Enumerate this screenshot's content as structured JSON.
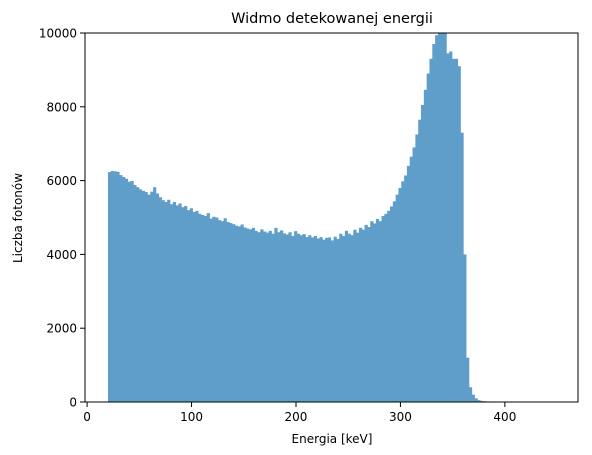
{
  "chart_data": {
    "type": "bar",
    "histogram": true,
    "title": "Widmo detekowanej energii",
    "xlabel": "Energia [keV]",
    "ylabel": "Liczba fotonów",
    "xlim": [
      -2,
      470
    ],
    "ylim": [
      0,
      10000
    ],
    "xticks": [
      0,
      100,
      200,
      300,
      400
    ],
    "yticks": [
      0,
      2000,
      4000,
      6000,
      8000,
      10000
    ],
    "grid": false,
    "bar_color": "#5f9ec9",
    "bin_width": 2.7,
    "x_start": 20,
    "values": [
      6230,
      6260,
      6250,
      6240,
      6150,
      6100,
      6050,
      5970,
      5990,
      5880,
      5820,
      5760,
      5720,
      5690,
      5620,
      5700,
      5820,
      5650,
      5550,
      5470,
      5420,
      5480,
      5360,
      5420,
      5330,
      5380,
      5280,
      5310,
      5200,
      5250,
      5150,
      5180,
      5100,
      5070,
      5040,
      5120,
      4970,
      5020,
      5000,
      4930,
      4900,
      4980,
      4880,
      4850,
      4820,
      4780,
      4760,
      4810,
      4730,
      4700,
      4680,
      4720,
      4640,
      4600,
      4680,
      4620,
      4590,
      4640,
      4560,
      4720,
      4600,
      4650,
      4570,
      4540,
      4600,
      4500,
      4630,
      4560,
      4520,
      4550,
      4470,
      4520,
      4460,
      4500,
      4430,
      4470,
      4400,
      4450,
      4460,
      4380,
      4480,
      4420,
      4560,
      4500,
      4640,
      4560,
      4520,
      4670,
      4590,
      4720,
      4670,
      4800,
      4740,
      4900,
      4840,
      4960,
      4900,
      5040,
      5100,
      5180,
      5300,
      5440,
      5620,
      5800,
      5980,
      6140,
      6400,
      6650,
      6900,
      7250,
      7650,
      8050,
      8460,
      8900,
      9300,
      9700,
      9940,
      10300,
      10500,
      10400,
      9450,
      9500,
      9300,
      9300,
      9100,
      7300,
      4000,
      1200,
      400,
      200,
      100,
      50,
      30,
      20,
      15,
      10,
      5,
      3,
      2,
      1
    ]
  }
}
